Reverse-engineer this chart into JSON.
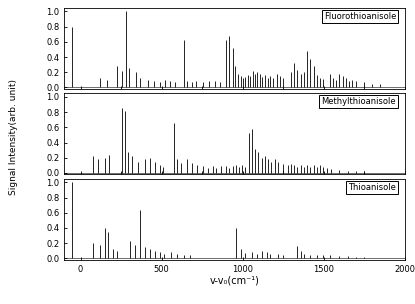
{
  "xlabel": "v-v₀(cm⁻¹)",
  "ylabel": "Signal Intensity(arb. unit)",
  "xlim": [
    -100,
    2000
  ],
  "ylim": [
    -0.02,
    1.05
  ],
  "yticks": [
    0.0,
    0.2,
    0.4,
    0.6,
    0.8,
    1.0
  ],
  "xticks": [
    0,
    500,
    1000,
    1500,
    2000
  ],
  "labels": [
    "Fluorothioanisole",
    "Methylthioanisole",
    "Thioanisole"
  ],
  "fluorothioanisole_peaks": [
    [
      -55,
      0.8
    ],
    [
      120,
      0.13
    ],
    [
      165,
      0.1
    ],
    [
      225,
      0.28
    ],
    [
      255,
      0.22
    ],
    [
      280,
      1.0
    ],
    [
      300,
      0.25
    ],
    [
      345,
      0.2
    ],
    [
      370,
      0.12
    ],
    [
      415,
      0.1
    ],
    [
      455,
      0.08
    ],
    [
      490,
      0.07
    ],
    [
      520,
      0.1
    ],
    [
      555,
      0.08
    ],
    [
      580,
      0.07
    ],
    [
      638,
      0.63
    ],
    [
      660,
      0.08
    ],
    [
      688,
      0.07
    ],
    [
      715,
      0.08
    ],
    [
      755,
      0.07
    ],
    [
      790,
      0.09
    ],
    [
      830,
      0.08
    ],
    [
      860,
      0.07
    ],
    [
      900,
      0.62
    ],
    [
      918,
      0.68
    ],
    [
      938,
      0.52
    ],
    [
      955,
      0.28
    ],
    [
      972,
      0.18
    ],
    [
      988,
      0.15
    ],
    [
      1005,
      0.12
    ],
    [
      1018,
      0.14
    ],
    [
      1035,
      0.17
    ],
    [
      1048,
      0.15
    ],
    [
      1062,
      0.22
    ],
    [
      1078,
      0.18
    ],
    [
      1092,
      0.2
    ],
    [
      1108,
      0.18
    ],
    [
      1122,
      0.14
    ],
    [
      1138,
      0.16
    ],
    [
      1155,
      0.13
    ],
    [
      1172,
      0.15
    ],
    [
      1190,
      0.13
    ],
    [
      1215,
      0.18
    ],
    [
      1232,
      0.15
    ],
    [
      1252,
      0.13
    ],
    [
      1298,
      0.2
    ],
    [
      1318,
      0.32
    ],
    [
      1338,
      0.23
    ],
    [
      1358,
      0.18
    ],
    [
      1378,
      0.2
    ],
    [
      1398,
      0.48
    ],
    [
      1418,
      0.38
    ],
    [
      1438,
      0.28
    ],
    [
      1458,
      0.16
    ],
    [
      1478,
      0.13
    ],
    [
      1498,
      0.11
    ],
    [
      1538,
      0.18
    ],
    [
      1558,
      0.13
    ],
    [
      1578,
      0.1
    ],
    [
      1598,
      0.18
    ],
    [
      1618,
      0.15
    ],
    [
      1638,
      0.12
    ],
    [
      1658,
      0.09
    ],
    [
      1678,
      0.1
    ],
    [
      1698,
      0.08
    ],
    [
      1748,
      0.07
    ],
    [
      1798,
      0.05
    ],
    [
      1848,
      0.04
    ]
  ],
  "methylthioanisole_peaks": [
    [
      75,
      0.22
    ],
    [
      110,
      0.18
    ],
    [
      148,
      0.2
    ],
    [
      178,
      0.23
    ],
    [
      255,
      0.85
    ],
    [
      272,
      0.82
    ],
    [
      295,
      0.28
    ],
    [
      318,
      0.22
    ],
    [
      355,
      0.15
    ],
    [
      395,
      0.18
    ],
    [
      428,
      0.2
    ],
    [
      458,
      0.15
    ],
    [
      488,
      0.1
    ],
    [
      508,
      0.08
    ],
    [
      578,
      0.65
    ],
    [
      598,
      0.18
    ],
    [
      618,
      0.13
    ],
    [
      658,
      0.18
    ],
    [
      688,
      0.13
    ],
    [
      718,
      0.1
    ],
    [
      758,
      0.09
    ],
    [
      788,
      0.07
    ],
    [
      818,
      0.09
    ],
    [
      838,
      0.07
    ],
    [
      868,
      0.09
    ],
    [
      898,
      0.09
    ],
    [
      918,
      0.07
    ],
    [
      938,
      0.09
    ],
    [
      958,
      0.1
    ],
    [
      978,
      0.08
    ],
    [
      998,
      0.1
    ],
    [
      1018,
      0.08
    ],
    [
      1038,
      0.52
    ],
    [
      1058,
      0.58
    ],
    [
      1078,
      0.32
    ],
    [
      1098,
      0.27
    ],
    [
      1118,
      0.2
    ],
    [
      1138,
      0.22
    ],
    [
      1158,
      0.18
    ],
    [
      1178,
      0.15
    ],
    [
      1198,
      0.18
    ],
    [
      1218,
      0.15
    ],
    [
      1248,
      0.12
    ],
    [
      1278,
      0.1
    ],
    [
      1298,
      0.12
    ],
    [
      1318,
      0.1
    ],
    [
      1338,
      0.08
    ],
    [
      1358,
      0.1
    ],
    [
      1378,
      0.08
    ],
    [
      1398,
      0.1
    ],
    [
      1418,
      0.08
    ],
    [
      1438,
      0.1
    ],
    [
      1458,
      0.08
    ],
    [
      1478,
      0.1
    ],
    [
      1498,
      0.08
    ],
    [
      1518,
      0.06
    ],
    [
      1548,
      0.05
    ],
    [
      1598,
      0.04
    ],
    [
      1648,
      0.03
    ],
    [
      1698,
      0.03
    ],
    [
      1748,
      0.02
    ]
  ],
  "thioanisole_peaks": [
    [
      -55,
      1.0
    ],
    [
      78,
      0.2
    ],
    [
      118,
      0.18
    ],
    [
      148,
      0.4
    ],
    [
      172,
      0.35
    ],
    [
      198,
      0.13
    ],
    [
      228,
      0.1
    ],
    [
      308,
      0.23
    ],
    [
      338,
      0.18
    ],
    [
      368,
      0.63
    ],
    [
      398,
      0.15
    ],
    [
      428,
      0.12
    ],
    [
      458,
      0.1
    ],
    [
      488,
      0.08
    ],
    [
      518,
      0.06
    ],
    [
      558,
      0.08
    ],
    [
      598,
      0.06
    ],
    [
      638,
      0.05
    ],
    [
      678,
      0.04
    ],
    [
      958,
      0.4
    ],
    [
      988,
      0.13
    ],
    [
      1018,
      0.07
    ],
    [
      1058,
      0.08
    ],
    [
      1088,
      0.06
    ],
    [
      1118,
      0.1
    ],
    [
      1148,
      0.08
    ],
    [
      1172,
      0.06
    ],
    [
      1218,
      0.06
    ],
    [
      1248,
      0.05
    ],
    [
      1338,
      0.16
    ],
    [
      1358,
      0.1
    ],
    [
      1378,
      0.06
    ],
    [
      1418,
      0.05
    ],
    [
      1458,
      0.04
    ],
    [
      1498,
      0.05
    ],
    [
      1538,
      0.04
    ],
    [
      1598,
      0.03
    ],
    [
      1648,
      0.03
    ],
    [
      1698,
      0.02
    ],
    [
      1748,
      0.02
    ]
  ]
}
